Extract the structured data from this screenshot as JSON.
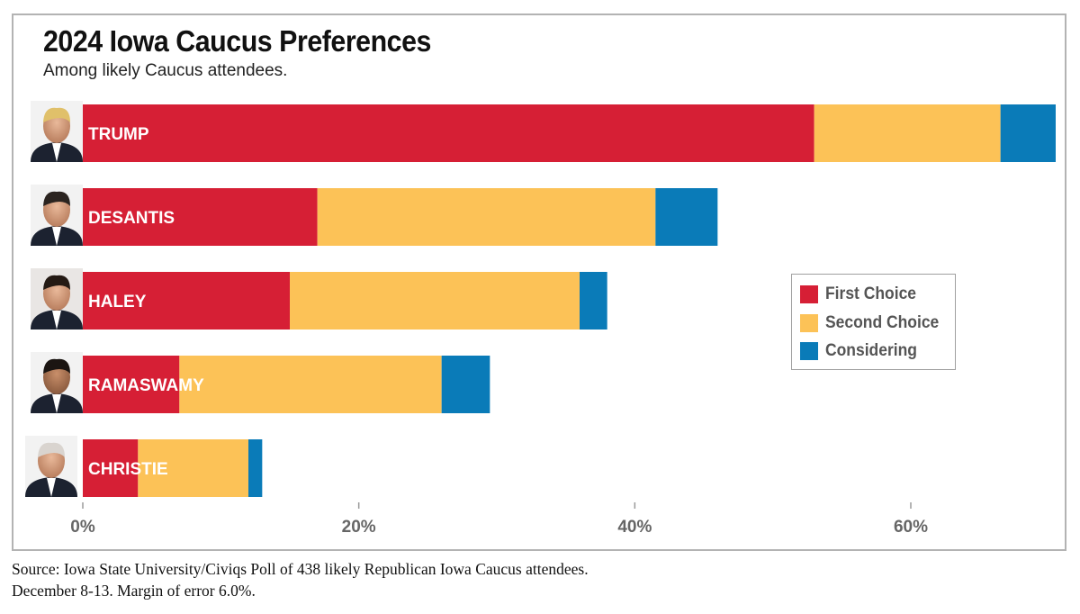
{
  "title": "2024 Iowa Caucus Preferences",
  "subtitle": "Among likely Caucus attendees.",
  "legend": {
    "position": "right",
    "items": [
      {
        "label": "First Choice",
        "color": "#d61f35"
      },
      {
        "label": "Second Choice",
        "color": "#fcc257"
      },
      {
        "label": "Considering",
        "color": "#0a7bb8"
      }
    ]
  },
  "source": {
    "line1": "Source: Iowa State University/Civiqs Poll of 438 likely Republican Iowa Caucus attendees.",
    "line2": "December 8-13. Margin of error 6.0%."
  },
  "chart_data": {
    "type": "bar",
    "orientation": "horizontal",
    "stacked": true,
    "categories": [
      "TRUMP",
      "DESANTIS",
      "HALEY",
      "RAMASWAMY",
      "CHRISTIE"
    ],
    "series": [
      {
        "name": "First Choice",
        "color": "#d61f35",
        "values": [
          53,
          17,
          15,
          7,
          4
        ]
      },
      {
        "name": "Second Choice",
        "color": "#fcc257",
        "values": [
          13.5,
          24.5,
          21,
          19,
          8
        ]
      },
      {
        "name": "Considering",
        "color": "#0a7bb8",
        "values": [
          4,
          4.5,
          2,
          3.5,
          1
        ]
      }
    ],
    "x_ticks": [
      "0%",
      "20%",
      "40%",
      "60%"
    ],
    "x_tick_values": [
      0,
      20,
      40,
      60
    ],
    "xlim": [
      0,
      70.5
    ],
    "grid": false,
    "category_photos": true
  }
}
